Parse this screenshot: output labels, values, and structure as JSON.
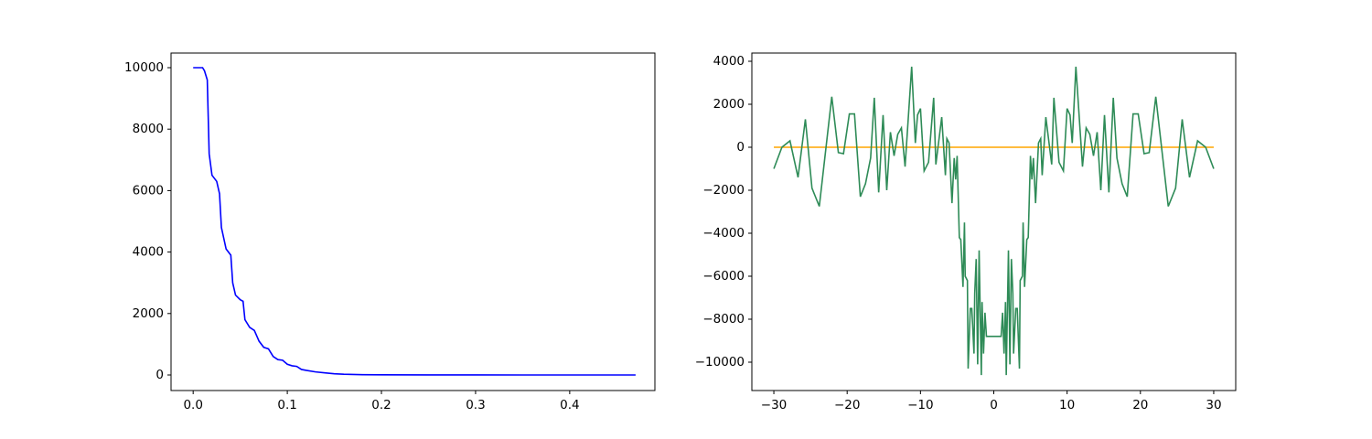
{
  "chart_data": [
    {
      "type": "line",
      "xlim": [
        -0.0235,
        0.4905
      ],
      "ylim": [
        -506,
        10476
      ],
      "xticks": [
        {
          "value": 0,
          "label": "0.0"
        },
        0.1,
        0.2,
        0.3,
        0.4
      ],
      "yticks": [
        0,
        2000,
        4000,
        6000,
        8000,
        10000
      ],
      "series": [
        {
          "color": "#0000ff",
          "x": [
            0,
            0.01,
            0.012,
            0.015,
            0.017,
            0.02,
            0.025,
            0.028,
            0.03,
            0.035,
            0.04,
            0.042,
            0.045,
            0.05,
            0.053,
            0.055,
            0.06,
            0.065,
            0.07,
            0.075,
            0.08,
            0.085,
            0.09,
            0.095,
            0.1,
            0.105,
            0.11,
            0.115,
            0.12,
            0.13,
            0.14,
            0.15,
            0.16,
            0.18,
            0.2,
            0.25,
            0.3,
            0.35,
            0.4,
            0.47
          ],
          "values": [
            10000,
            10000,
            9900,
            9600,
            7200,
            6500,
            6300,
            5900,
            4800,
            4100,
            3900,
            3000,
            2600,
            2450,
            2400,
            1800,
            1550,
            1450,
            1100,
            900,
            850,
            600,
            500,
            480,
            350,
            300,
            280,
            180,
            150,
            100,
            70,
            40,
            25,
            10,
            5,
            2,
            1,
            0,
            0,
            0
          ]
        }
      ]
    },
    {
      "type": "line",
      "xlim": [
        -33,
        33
      ],
      "ylim": [
        -11319,
        4383
      ],
      "xticks": [
        {
          "value": -30,
          "label": "−30"
        },
        {
          "value": -20,
          "label": "−20"
        },
        {
          "value": -10,
          "label": "−10"
        },
        0,
        10,
        20,
        30
      ],
      "yticks": [
        {
          "value": -10000,
          "label": "−10000"
        },
        {
          "value": -8000,
          "label": "−8000"
        },
        {
          "value": -6000,
          "label": "−6000"
        },
        {
          "value": -4000,
          "label": "−4000"
        },
        {
          "value": -2000,
          "label": "−2000"
        },
        0,
        2000,
        4000
      ],
      "series": [
        {
          "color": "#ffa500",
          "x": [
            -30,
            30
          ],
          "values": [
            0,
            0
          ]
        },
        {
          "color": "#2e8b57",
          "x": [
            -30,
            -28.9,
            -27.8,
            -26.7,
            -25.7,
            -24.8,
            -23.8,
            -22.1,
            -21.2,
            -20.5,
            -19.7,
            -19,
            -18.2,
            -17.5,
            -16.8,
            -16.3,
            -15.7,
            -15.1,
            -14.6,
            -14.1,
            -13.6,
            -13.1,
            -12.6,
            -12.1,
            -11.2,
            -10.7,
            -10.4,
            -10,
            -9.5,
            -8.9,
            -8.2,
            -7.9,
            -7.1,
            -6.6,
            -6.4,
            -6.1,
            -5.7,
            -5.4,
            -5.2,
            -5,
            -4.7,
            -4.5,
            -4.2,
            -4,
            -3.9,
            -3.6,
            -3.5,
            -3.2,
            -3,
            -2.7,
            -2.6,
            -2.4,
            -2.2,
            -2,
            -1.7,
            -1.6,
            -1.4,
            -1.2,
            -1,
            1,
            1.2,
            1.4,
            1.6,
            1.7,
            2,
            2.2,
            2.4,
            2.6,
            2.7,
            3,
            3.2,
            3.5,
            3.6,
            3.9,
            4,
            4.2,
            4.5,
            4.7,
            5,
            5.2,
            5.4,
            5.7,
            6.1,
            6.4,
            6.6,
            7.1,
            7.9,
            8.2,
            8.9,
            9.5,
            10,
            10.4,
            10.7,
            11.2,
            12.1,
            12.6,
            13.1,
            13.6,
            14.1,
            14.6,
            15.1,
            15.7,
            16.3,
            16.8,
            17.5,
            18.2,
            19,
            19.7,
            20.5,
            21.2,
            22.1,
            23.8,
            24.8,
            25.7,
            26.7,
            27.8,
            28.9,
            30
          ],
          "values": [
            -1000,
            0,
            300,
            -1400,
            1300,
            -1900,
            -2750,
            2350,
            -250,
            -300,
            1550,
            1550,
            -2300,
            -1700,
            -500,
            2300,
            -2100,
            1500,
            -2000,
            700,
            -400,
            600,
            900,
            -900,
            3750,
            200,
            1500,
            1800,
            -1100,
            -700,
            2300,
            -800,
            1400,
            -1300,
            400,
            200,
            -2600,
            -500,
            -1500,
            -400,
            -4200,
            -4300,
            -6500,
            -3500,
            -6000,
            -6200,
            -10300,
            -7500,
            -7500,
            -9600,
            -6800,
            -5200,
            -10100,
            -4800,
            -10600,
            -7200,
            -9600,
            -7700,
            -8800,
            -8800,
            -7700,
            -9600,
            -7200,
            -10600,
            -4800,
            -10100,
            -5200,
            -6800,
            -9600,
            -7500,
            -7500,
            -10300,
            -6200,
            -6000,
            -3500,
            -6500,
            -4300,
            -4200,
            -400,
            -1500,
            -500,
            -2600,
            200,
            400,
            -1300,
            1400,
            -800,
            2300,
            -700,
            -1100,
            1800,
            1500,
            200,
            3750,
            -900,
            900,
            600,
            -400,
            700,
            -2000,
            1500,
            -2100,
            2300,
            -500,
            -1700,
            -2300,
            1550,
            1550,
            -300,
            -250,
            2350,
            -2750,
            -1900,
            1300,
            -1400,
            300,
            0,
            -1000
          ]
        }
      ]
    }
  ]
}
